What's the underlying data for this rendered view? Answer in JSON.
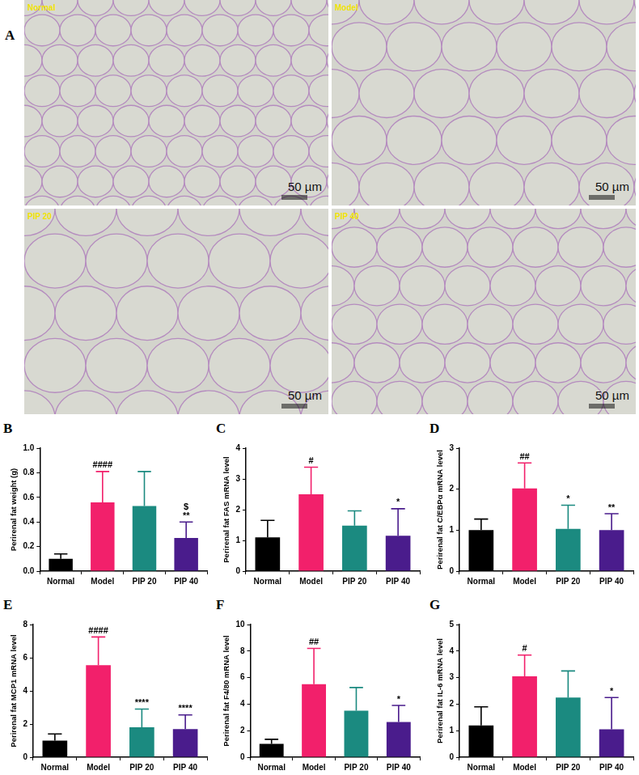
{
  "panel_a": {
    "label": "A",
    "images": [
      {
        "title": "Normal",
        "scale_bar": "50 µm"
      },
      {
        "title": "Model",
        "scale_bar": "50 µm"
      },
      {
        "title": "PIP 20",
        "scale_bar": "50 µm"
      },
      {
        "title": "PIP 40",
        "scale_bar": "50 µm"
      }
    ]
  },
  "chart_data": [
    {
      "type": "bar",
      "panel": "B",
      "y_label": "Perirenal fat weight (g)",
      "categories": [
        "Normal",
        "Model",
        "PIP 20",
        "PIP 40"
      ],
      "values": [
        0.1,
        0.56,
        0.53,
        0.27
      ],
      "errors": [
        0.04,
        0.25,
        0.28,
        0.13
      ],
      "colors": [
        "#000000",
        "#f2206b",
        "#1b8a80",
        "#4a1c8c"
      ],
      "ylim": [
        0,
        1.0
      ],
      "yticks": [
        {
          "value": 0,
          "label": "0.0"
        },
        {
          "value": 0.2,
          "label": "0.2"
        },
        {
          "value": 0.4,
          "label": "0.4"
        },
        {
          "value": 0.6,
          "label": "0.6"
        },
        {
          "value": 0.8,
          "label": "0.8"
        },
        {
          "value": 1.0,
          "label": "1.0"
        }
      ],
      "grid": false,
      "annotations": [
        {
          "category": "Model",
          "text": "####"
        },
        {
          "category": "PIP 40",
          "text": "**"
        },
        {
          "category": "PIP 40",
          "text": "$"
        }
      ]
    },
    {
      "type": "bar",
      "panel": "C",
      "y_label": "Perirenal fat FAS mRNA level",
      "categories": [
        "Normal",
        "Model",
        "PIP 20",
        "PIP 40"
      ],
      "values": [
        1.1,
        2.5,
        1.48,
        1.15
      ],
      "errors": [
        0.55,
        0.88,
        0.48,
        0.88
      ],
      "colors": [
        "#000000",
        "#f2206b",
        "#1b8a80",
        "#4a1c8c"
      ],
      "ylim": [
        0,
        4
      ],
      "yticks": [
        0,
        1,
        2,
        3,
        4
      ],
      "grid": false,
      "annotations": [
        {
          "category": "Model",
          "text": "#"
        },
        {
          "category": "PIP 40",
          "text": "*"
        }
      ]
    },
    {
      "type": "bar",
      "panel": "D",
      "y_label": "Perirenal fat C/EBPα mRNA level",
      "categories": [
        "Normal",
        "Model",
        "PIP 20",
        "PIP 40"
      ],
      "values": [
        1.0,
        2.02,
        1.03,
        1.0
      ],
      "errors": [
        0.27,
        0.62,
        0.58,
        0.4
      ],
      "colors": [
        "#000000",
        "#f2206b",
        "#1b8a80",
        "#4a1c8c"
      ],
      "ylim": [
        0,
        3
      ],
      "yticks": [
        0,
        1,
        2,
        3
      ],
      "grid": false,
      "annotations": [
        {
          "category": "Model",
          "text": "##"
        },
        {
          "category": "PIP 20",
          "text": "*"
        },
        {
          "category": "PIP 40",
          "text": "**"
        }
      ]
    },
    {
      "type": "bar",
      "panel": "E",
      "y_label": "Perirenal fat MCP1 mRNA level",
      "categories": [
        "Normal",
        "Model",
        "PIP 20",
        "PIP 40"
      ],
      "values": [
        1.0,
        5.55,
        1.8,
        1.7
      ],
      "errors": [
        0.4,
        1.7,
        1.1,
        0.85
      ],
      "colors": [
        "#000000",
        "#f2206b",
        "#1b8a80",
        "#4a1c8c"
      ],
      "ylim": [
        0,
        8
      ],
      "yticks": [
        0,
        2,
        4,
        6,
        8
      ],
      "grid": false,
      "annotations": [
        {
          "category": "Model",
          "text": "####"
        },
        {
          "category": "PIP 20",
          "text": "****"
        },
        {
          "category": "PIP 40",
          "text": "****"
        }
      ]
    },
    {
      "type": "bar",
      "panel": "F",
      "y_label": "Perirenal fat F4/80 mRNA level",
      "categories": [
        "Normal",
        "Model",
        "PIP 20",
        "PIP 40"
      ],
      "values": [
        1.0,
        5.5,
        3.5,
        2.65
      ],
      "errors": [
        0.35,
        2.7,
        1.75,
        1.25
      ],
      "colors": [
        "#000000",
        "#f2206b",
        "#1b8a80",
        "#4a1c8c"
      ],
      "ylim": [
        0,
        10
      ],
      "yticks": [
        0,
        2,
        4,
        6,
        8,
        10
      ],
      "grid": false,
      "annotations": [
        {
          "category": "Model",
          "text": "##"
        },
        {
          "category": "PIP 40",
          "text": "*"
        }
      ]
    },
    {
      "type": "bar",
      "panel": "G",
      "y_label": "Perirenal fat IL-6 mRNA level",
      "categories": [
        "Normal",
        "Model",
        "PIP 20",
        "PIP 40"
      ],
      "values": [
        1.2,
        3.05,
        2.25,
        1.05
      ],
      "errors": [
        0.7,
        0.8,
        1.0,
        1.2
      ],
      "colors": [
        "#000000",
        "#f2206b",
        "#1b8a80",
        "#4a1c8c"
      ],
      "ylim": [
        0,
        5
      ],
      "yticks": [
        0,
        1,
        2,
        3,
        4,
        5
      ],
      "grid": false,
      "annotations": [
        {
          "category": "Model",
          "text": "#"
        },
        {
          "category": "PIP 40",
          "text": "*"
        }
      ]
    }
  ]
}
